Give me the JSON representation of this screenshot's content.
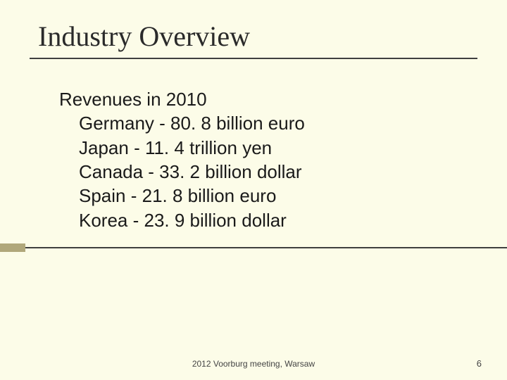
{
  "title": "Industry Overview",
  "content": {
    "heading": "Revenues in 2010",
    "items": [
      "Germany - 80. 8 billion euro",
      "Japan - 11. 4 trillion yen",
      "Canada - 33. 2 billion dollar",
      "Spain - 21. 8 billion euro",
      "Korea - 23. 9 billion dollar"
    ]
  },
  "footer": {
    "center": "2012 Voorburg meeting, Warsaw",
    "page": "6"
  },
  "colors": {
    "background": "#fcfce8",
    "line": "#3f3f3f",
    "accent": "#b0a77a",
    "text": "#1a1a1a"
  }
}
